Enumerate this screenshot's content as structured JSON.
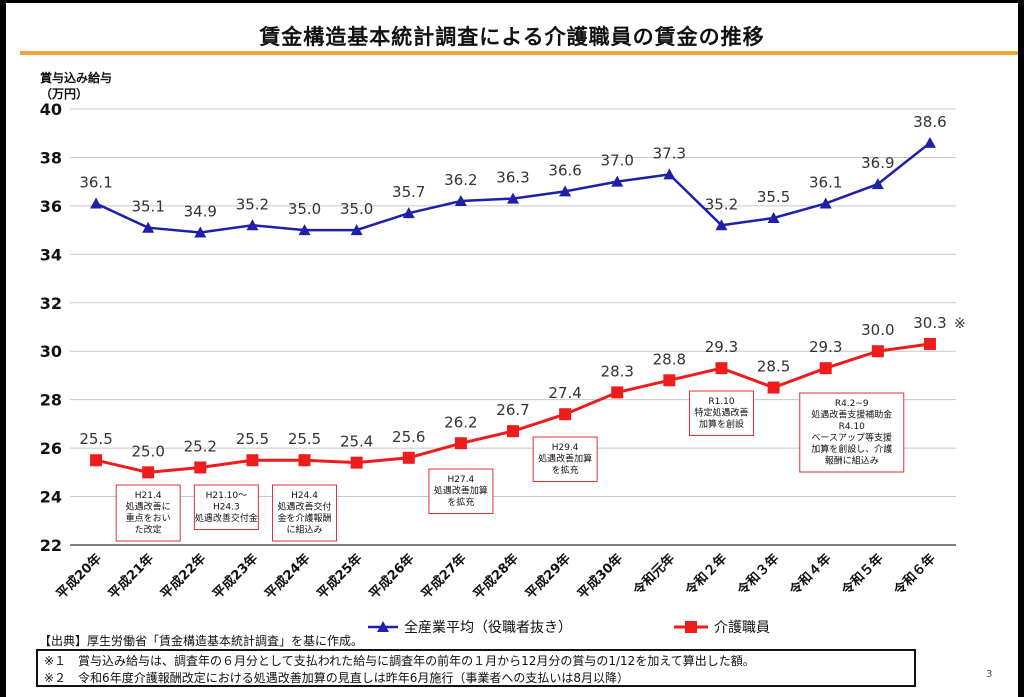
{
  "title": "賃金構造基本統計調査による介護職員の賃金の推移",
  "y_axis_label": [
    "賞与込み給与",
    "（万円）"
  ],
  "source": "【出典】厚生労働省「賃金構造基本統計調査」を基に作成。",
  "notes": [
    "※１　賞与込み給与は、調査年の６月分として支払われた給与に調査年の前年の１月から12月分の賞与の1/12を加えて算出した額。",
    "※２　令和6年度介護報酬改定における処遇改善加算の見直しは昨年6月施行（事業者への支払いは8月以降）"
  ],
  "page_number": "3",
  "colors": {
    "series1": "#1f1fa8",
    "series2": "#ee1c1c",
    "annotation_border": "#e03030",
    "title_rule": "#f0a23c"
  },
  "chart_data": {
    "type": "line",
    "categories": [
      "平成20年",
      "平成21年",
      "平成22年",
      "平成23年",
      "平成24年",
      "平成25年",
      "平成26年",
      "平成27年",
      "平成28年",
      "平成29年",
      "平成30年",
      "令和元年",
      "令和２年",
      "令和３年",
      "令和４年",
      "令和５年",
      "令和６年"
    ],
    "series": [
      {
        "name": "全産業平均（役職者抜き）",
        "marker": "triangle",
        "values": [
          36.1,
          35.1,
          34.9,
          35.2,
          35.0,
          35.0,
          35.7,
          36.2,
          36.3,
          36.6,
          37.0,
          37.3,
          35.2,
          35.5,
          36.1,
          36.9,
          38.6
        ],
        "labels": [
          "36.1",
          "35.1",
          "34.9",
          "35.2",
          "35.0",
          "35.0",
          "35.7",
          "36.2",
          "36.3",
          "36.6",
          "37.0",
          "37.3",
          "35.2",
          "35.5",
          "36.1",
          "36.9",
          "38.6"
        ]
      },
      {
        "name": "介護職員",
        "marker": "square",
        "values": [
          25.5,
          25.0,
          25.2,
          25.5,
          25.5,
          25.4,
          25.6,
          26.2,
          26.7,
          27.4,
          28.3,
          28.8,
          29.3,
          28.5,
          29.3,
          30.0,
          30.3
        ],
        "labels": [
          "25.5",
          "25.0",
          "25.2",
          "25.5",
          "25.5",
          "25.4",
          "25.6",
          "26.2",
          "26.7",
          "27.4",
          "28.3",
          "28.8",
          "29.3",
          "28.5",
          "29.3",
          "30.0",
          "30.3"
        ]
      }
    ],
    "last_point_note": "※",
    "ylim": [
      22,
      40
    ],
    "yticks": [
      "22",
      "24",
      "26",
      "28",
      "30",
      "32",
      "34",
      "36",
      "38",
      "40"
    ],
    "grid": true,
    "legend_position": "bottom",
    "annotations": [
      {
        "category_index": 1,
        "lines": [
          "H21.4",
          "処遇改善に",
          "重点をおい",
          "た改定"
        ]
      },
      {
        "category_index": 2.5,
        "lines": [
          "H21.10～",
          "H24.3",
          "処遇改善交付金"
        ]
      },
      {
        "category_index": 4,
        "lines": [
          "H24.4",
          "処遇改善交付",
          "金を介護報酬",
          "に組込み"
        ]
      },
      {
        "category_index": 7,
        "lines": [
          "H27.4",
          "処遇改善加算",
          "を拡充"
        ]
      },
      {
        "category_index": 9,
        "lines": [
          "H29.4",
          "処遇改善加算",
          "を拡充"
        ]
      },
      {
        "category_index": 12,
        "lines": [
          "R1.10",
          "特定処遇改善",
          "加算を創設"
        ]
      },
      {
        "category_index": 14.5,
        "lines": [
          "R4.2~9",
          "処遇改善支援補助金",
          "R4.10",
          "ベースアップ等支援",
          "加算を創設し、介護",
          "報酬に組込み"
        ]
      }
    ]
  }
}
